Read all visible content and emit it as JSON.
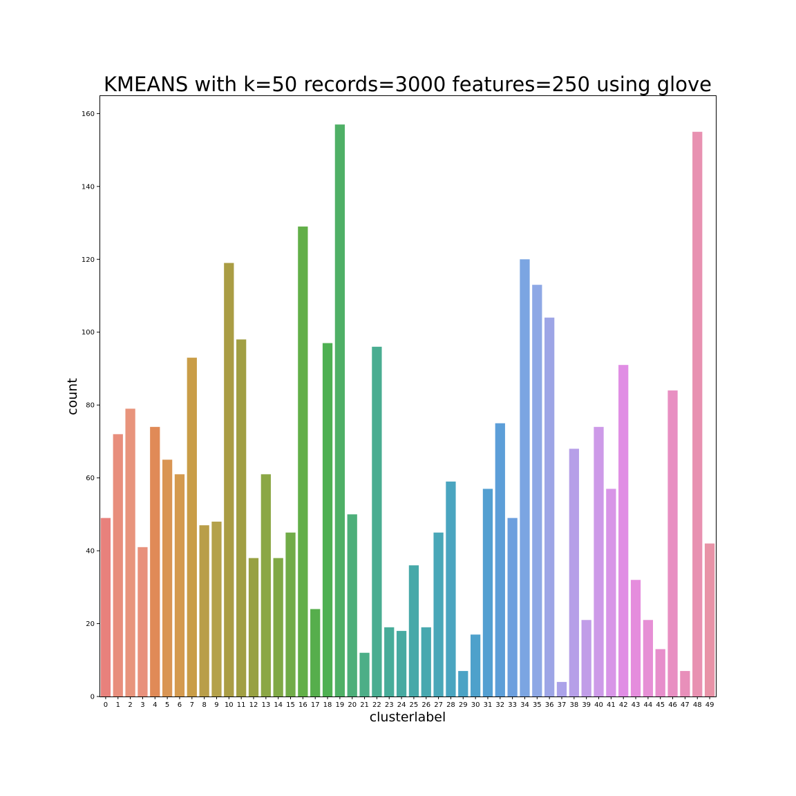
{
  "chart_data": {
    "type": "bar",
    "title": "KMEANS with k=50 records=3000 features=250 using glove",
    "xlabel": "clusterlabel",
    "ylabel": "count",
    "ylim": [
      0,
      165
    ],
    "yticks": [
      0,
      20,
      40,
      60,
      80,
      100,
      120,
      140,
      160
    ],
    "grid": false,
    "categories": [
      "0",
      "1",
      "2",
      "3",
      "4",
      "5",
      "6",
      "7",
      "8",
      "9",
      "10",
      "11",
      "12",
      "13",
      "14",
      "15",
      "16",
      "17",
      "18",
      "19",
      "20",
      "21",
      "22",
      "23",
      "24",
      "25",
      "26",
      "27",
      "28",
      "29",
      "30",
      "31",
      "32",
      "33",
      "34",
      "35",
      "36",
      "37",
      "38",
      "39",
      "40",
      "41",
      "42",
      "43",
      "44",
      "45",
      "46",
      "47",
      "48",
      "49"
    ],
    "values": [
      49,
      72,
      79,
      41,
      74,
      65,
      61,
      93,
      47,
      48,
      119,
      98,
      38,
      61,
      38,
      45,
      129,
      24,
      97,
      157,
      50,
      12,
      96,
      19,
      18,
      36,
      19,
      45,
      59,
      7,
      17,
      57,
      75,
      49,
      120,
      113,
      104,
      4,
      68,
      21,
      74,
      57,
      91,
      32,
      21,
      13,
      84,
      7,
      155,
      42
    ],
    "colors": [
      "#e8817c",
      "#e88e7c",
      "#e8947c",
      "#e8917c",
      "#e08a57",
      "#d99553",
      "#d49a4e",
      "#c99d47",
      "#b99e49",
      "#b4a14a",
      "#aa9d44",
      "#a19f43",
      "#98a142",
      "#8ba745",
      "#80a946",
      "#71ac48",
      "#62af48",
      "#56ae4c",
      "#4eb052",
      "#4fb066",
      "#4daf7a",
      "#4cae87",
      "#49ad91",
      "#47ac99",
      "#47aaa1",
      "#47a9a9",
      "#48a8af",
      "#49a7b8",
      "#4aa5c0",
      "#4ba3c5",
      "#4ea1cb",
      "#539fd1",
      "#5c9ed8",
      "#6c9fde",
      "#7ba5e2",
      "#8ea8e5",
      "#9da5e6",
      "#aba2e9",
      "#b69fe8",
      "#c19de8",
      "#cd9ae8",
      "#d895e7",
      "#e08de4",
      "#e58ddd",
      "#e68fd5",
      "#e78ecb",
      "#e88fc2",
      "#e88fba",
      "#e891b1",
      "#e893a7"
    ]
  }
}
